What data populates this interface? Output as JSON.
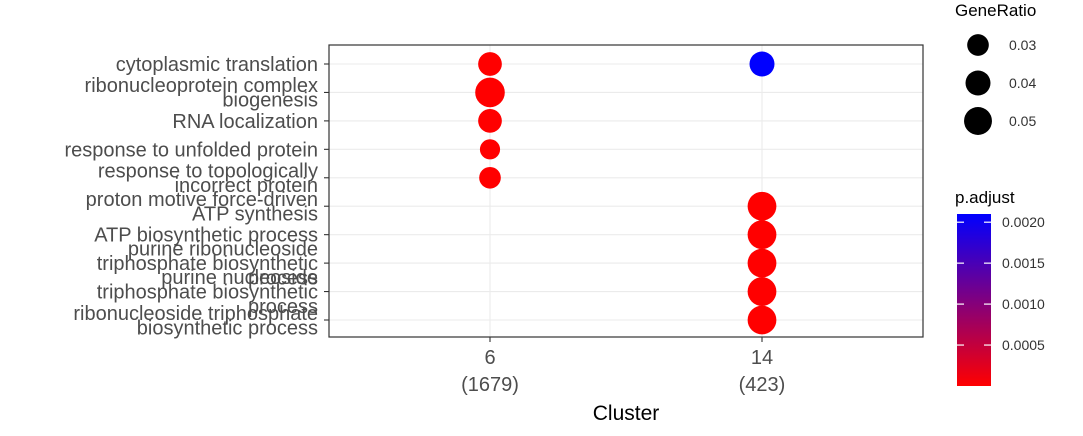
{
  "chart_data": {
    "type": "scatter",
    "xlabel": "Cluster",
    "clusters": [
      {
        "id": "6",
        "count": "(1679)"
      },
      {
        "id": "14",
        "count": "(423)"
      }
    ],
    "terms": [
      {
        "lines": [
          "cytoplasmic translation"
        ]
      },
      {
        "lines": [
          "ribonucleoprotein complex",
          "biogenesis"
        ]
      },
      {
        "lines": [
          "RNA localization"
        ]
      },
      {
        "lines": [
          "response to unfolded protein"
        ]
      },
      {
        "lines": [
          "response to topologically",
          "incorrect protein"
        ]
      },
      {
        "lines": [
          "proton motive force-driven",
          "ATP synthesis"
        ]
      },
      {
        "lines": [
          "ATP biosynthetic process"
        ]
      },
      {
        "lines": [
          "purine ribonucleoside",
          "triphosphate biosynthetic",
          "process"
        ]
      },
      {
        "lines": [
          "purine nucleoside",
          "triphosphate biosynthetic",
          "process"
        ]
      },
      {
        "lines": [
          "ribonucleoside triphosphate",
          "biosynthetic process"
        ]
      }
    ],
    "points": [
      {
        "term": 0,
        "cluster": 0,
        "gene_ratio": 0.036,
        "p_adjust": 0.0
      },
      {
        "term": 1,
        "cluster": 0,
        "gene_ratio": 0.056,
        "p_adjust": 0.0
      },
      {
        "term": 2,
        "cluster": 0,
        "gene_ratio": 0.036,
        "p_adjust": 0.0
      },
      {
        "term": 3,
        "cluster": 0,
        "gene_ratio": 0.026,
        "p_adjust": 0.0
      },
      {
        "term": 4,
        "cluster": 0,
        "gene_ratio": 0.03,
        "p_adjust": 0.0
      },
      {
        "term": 0,
        "cluster": 1,
        "gene_ratio": 0.04,
        "p_adjust": 0.0021
      },
      {
        "term": 5,
        "cluster": 1,
        "gene_ratio": 0.053,
        "p_adjust": 0.0
      },
      {
        "term": 6,
        "cluster": 1,
        "gene_ratio": 0.053,
        "p_adjust": 0.0
      },
      {
        "term": 7,
        "cluster": 1,
        "gene_ratio": 0.053,
        "p_adjust": 0.0
      },
      {
        "term": 8,
        "cluster": 1,
        "gene_ratio": 0.053,
        "p_adjust": 0.0
      },
      {
        "term": 9,
        "cluster": 1,
        "gene_ratio": 0.053,
        "p_adjust": 0.0
      }
    ],
    "size_legend": {
      "title": "GeneRatio",
      "breaks": [
        0.03,
        0.04,
        0.05
      ],
      "labels": [
        "0.03",
        "0.04",
        "0.05"
      ]
    },
    "color_legend": {
      "title": "p.adjust",
      "range": [
        0.0,
        0.0021
      ],
      "breaks": [
        0.0005,
        0.001,
        0.0015,
        0.002
      ],
      "labels": [
        "0.0005",
        "0.0010",
        "0.0015",
        "0.0020"
      ],
      "low_color": "#ff0000",
      "high_color": "#0000ff"
    },
    "grid": true,
    "legend_position": "right"
  }
}
